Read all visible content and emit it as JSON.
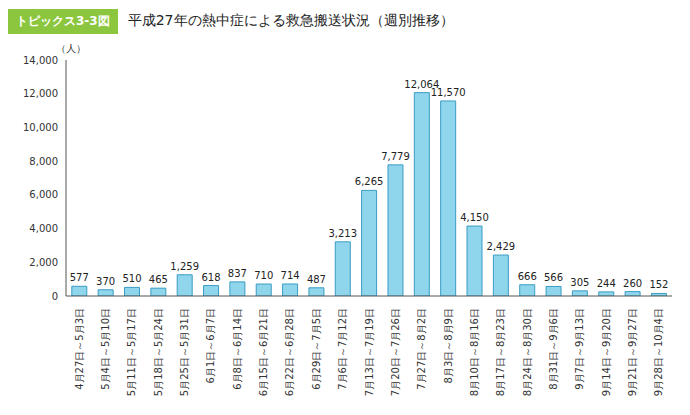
{
  "chart_data": {
    "type": "bar",
    "badge": "トピックス3-3図",
    "title": "平成27年の熱中症による救急搬送状況（週別推移）",
    "y_label": "（人）",
    "categories": [
      "4月27日～5月3日",
      "5月4日～5月10日",
      "5月11日～5月17日",
      "5月18日～5月24日",
      "5月25日～5月31日",
      "6月1日～6月7日",
      "6月8日～6月14日",
      "6月15日～6月21日",
      "6月22日～6月28日",
      "6月29日～7月5日",
      "7月6日～7月12日",
      "7月13日～7月19日",
      "7月20日～7月26日",
      "7月27日～8月2日",
      "8月3日～8月9日",
      "8月10日～8月16日",
      "8月17日～8月23日",
      "8月24日～8月30日",
      "8月31日～9月6日",
      "9月7日～9月13日",
      "9月14日～9月20日",
      "9月21日～9月27日",
      "9月28日～10月4日"
    ],
    "values": [
      577,
      370,
      510,
      465,
      1259,
      618,
      837,
      710,
      714,
      487,
      3213,
      6265,
      7779,
      12064,
      11570,
      4150,
      2429,
      666,
      566,
      305,
      244,
      260,
      152
    ],
    "value_labels": [
      "577",
      "370",
      "510",
      "465",
      "1,259",
      "618",
      "837",
      "710",
      "714",
      "487",
      "3,213",
      "6,265",
      "7,779",
      "12,064",
      "11,570",
      "4,150",
      "2,429",
      "666",
      "566",
      "305",
      "244",
      "260",
      "152"
    ],
    "color": "#8fd6ec",
    "ylim": [
      0,
      14000
    ],
    "yticks": [
      0,
      {
        "value": 2000,
        "label": "2,000"
      },
      {
        "value": 4000,
        "label": "4,000"
      },
      {
        "value": 6000,
        "label": "6,000"
      },
      {
        "value": 8000,
        "label": "8,000"
      },
      {
        "value": 10000,
        "label": "10,000"
      },
      {
        "value": 12000,
        "label": "12,000"
      },
      {
        "value": 14000,
        "label": "14,000"
      }
    ],
    "grid": false,
    "data_labels": true
  }
}
